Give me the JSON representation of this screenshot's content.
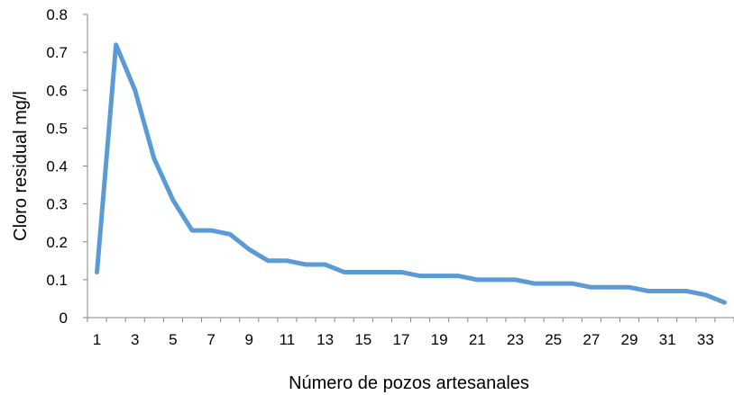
{
  "chart_data": {
    "type": "line",
    "title": "",
    "xlabel": "Número de pozos artesanales",
    "ylabel": "Cloro residual mg/l",
    "ylim": [
      0,
      0.8
    ],
    "yticks": [
      "0",
      "0.1",
      "0.2",
      "0.3",
      "0.4",
      "0.5",
      "0.6",
      "0.7",
      "0.8"
    ],
    "xticks": [
      "1",
      "3",
      "5",
      "7",
      "9",
      "11",
      "13",
      "15",
      "17",
      "19",
      "21",
      "23",
      "25",
      "27",
      "29",
      "31",
      "33"
    ],
    "grid": false,
    "legend": "none",
    "line_color": "#5B9BD5",
    "series": [
      {
        "x": [
          1,
          2,
          3,
          4,
          5,
          6,
          7,
          8,
          9,
          10,
          11,
          12,
          13,
          14,
          15,
          16,
          17,
          18,
          19,
          20,
          21,
          22,
          23,
          24,
          25,
          26,
          27,
          28,
          29,
          30,
          31,
          32,
          33,
          34
        ],
        "values": [
          0.12,
          0.72,
          0.6,
          0.42,
          0.31,
          0.23,
          0.23,
          0.22,
          0.18,
          0.15,
          0.15,
          0.14,
          0.14,
          0.12,
          0.12,
          0.12,
          0.12,
          0.11,
          0.11,
          0.11,
          0.1,
          0.1,
          0.1,
          0.09,
          0.09,
          0.09,
          0.08,
          0.08,
          0.08,
          0.07,
          0.07,
          0.07,
          0.06,
          0.04
        ]
      }
    ]
  }
}
